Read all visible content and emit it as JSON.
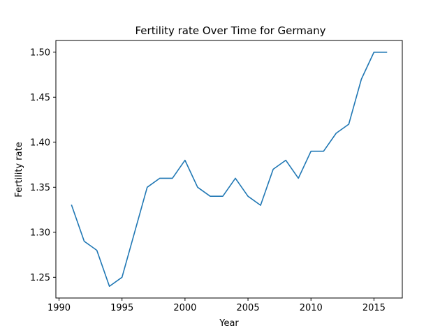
{
  "chart_data": {
    "type": "line",
    "title": "Fertility rate Over Time for Germany",
    "xlabel": "Year",
    "ylabel": "Fertility rate",
    "xlim": [
      1989.75,
      2017.25
    ],
    "ylim": [
      1.227,
      1.513
    ],
    "xticks": [
      1990,
      1995,
      2000,
      2005,
      2010,
      2015
    ],
    "yticks": [
      1.25,
      1.3,
      1.35,
      1.4,
      1.45,
      1.5
    ],
    "grid": false,
    "series": [
      {
        "color": "#1f77b4",
        "x": [
          1991,
          1992,
          1993,
          1994,
          1995,
          1996,
          1997,
          1998,
          1999,
          2000,
          2001,
          2002,
          2003,
          2004,
          2005,
          2006,
          2007,
          2008,
          2009,
          2010,
          2011,
          2012,
          2013,
          2014,
          2015,
          2016
        ],
        "y": [
          1.33,
          1.29,
          1.28,
          1.24,
          1.25,
          1.3,
          1.35,
          1.36,
          1.36,
          1.38,
          1.35,
          1.34,
          1.34,
          1.36,
          1.34,
          1.33,
          1.37,
          1.38,
          1.36,
          1.39,
          1.39,
          1.41,
          1.42,
          1.47,
          1.5,
          1.5
        ]
      }
    ]
  }
}
